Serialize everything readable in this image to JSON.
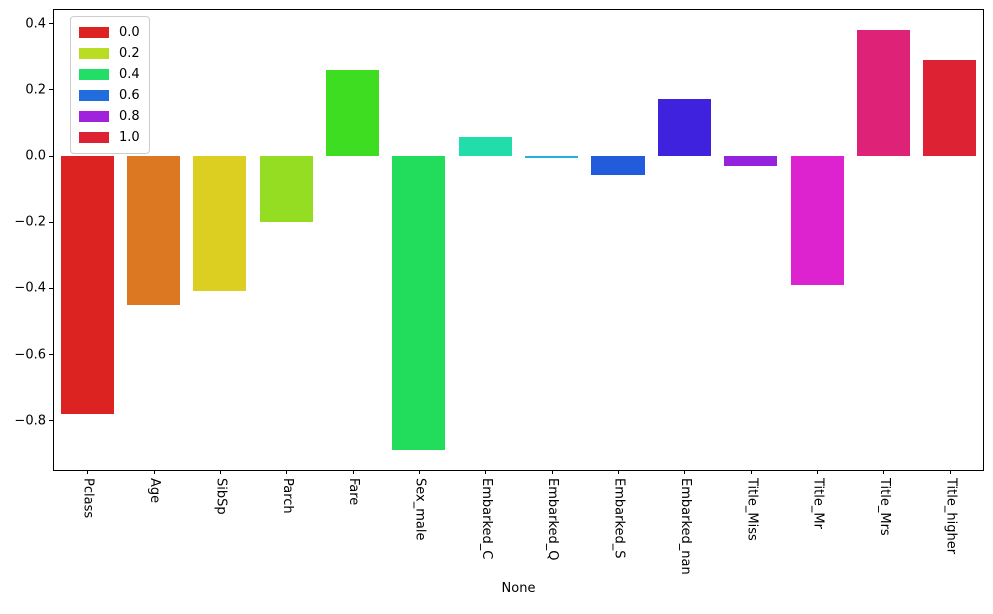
{
  "figure": {
    "background": "#ffffff",
    "spine_color": "#000000"
  },
  "chart_data": {
    "type": "bar",
    "title": "",
    "xlabel": "None",
    "ylabel": "",
    "categories": [
      "Pclass",
      "Age",
      "SibSp",
      "Parch",
      "Fare",
      "Sex_male",
      "Embarked_C",
      "Embarked_Q",
      "Embarked_S",
      "Embarked_nan",
      "Title_Miss",
      "Title_Mr",
      "Title_Mrs",
      "Title_higher"
    ],
    "values": [
      -0.78,
      -0.45,
      -0.41,
      -0.2,
      0.26,
      -0.89,
      0.055,
      -0.006,
      -0.06,
      0.17,
      -0.03,
      -0.39,
      0.38,
      0.29
    ],
    "bar_colors": [
      "#dd2222",
      "#dd7822",
      "#ddcf22",
      "#95dd22",
      "#3fdd22",
      "#22dd5c",
      "#22ddaa",
      "#22b2dd",
      "#225cdd",
      "#3f22dd",
      "#9522dd",
      "#dd22cf",
      "#dd2278",
      "#dd2233"
    ],
    "ylim": [
      -0.95,
      0.44
    ],
    "yticks": [
      0.4,
      0.2,
      0.0,
      -0.2,
      -0.4,
      -0.6,
      -0.8
    ],
    "ytick_labels": [
      "0.4",
      "0.2",
      "0.0",
      "−0.2",
      "−0.4",
      "−0.6",
      "−0.8"
    ],
    "grid": false,
    "bar_width_fraction": 0.8,
    "legend": {
      "position": "upper-left",
      "entries": [
        {
          "label": "0.0",
          "color": "#dd2222"
        },
        {
          "label": "0.2",
          "color": "#b8dd22"
        },
        {
          "label": "0.4",
          "color": "#22dd66"
        },
        {
          "label": "0.6",
          "color": "#226ddd"
        },
        {
          "label": "0.8",
          "color": "#a022dd"
        },
        {
          "label": "1.0",
          "color": "#dd2233"
        }
      ]
    }
  }
}
